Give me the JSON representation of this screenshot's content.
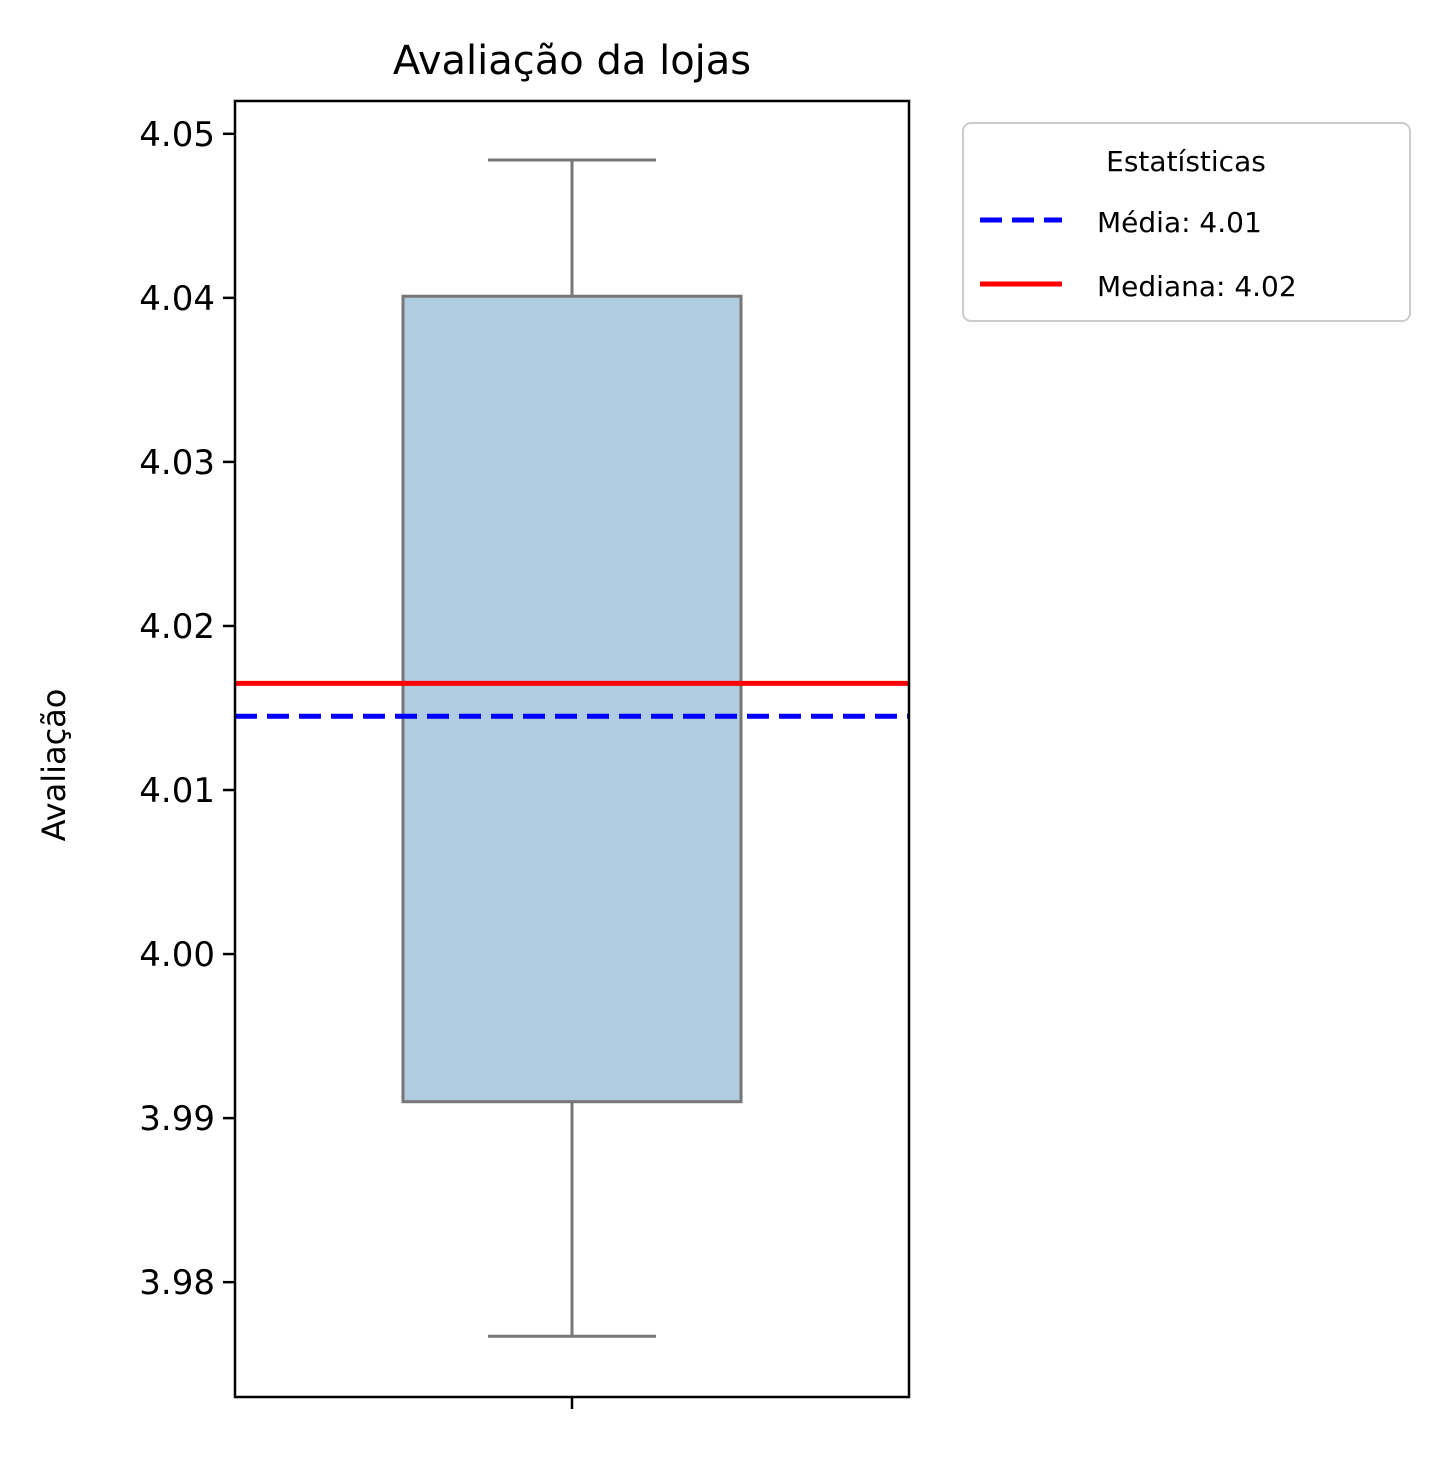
{
  "chart_data": {
    "type": "box",
    "title": "Avaliação da lojas",
    "xlabel": "",
    "ylabel": "Avaliação",
    "ylim": [
      3.973,
      4.052
    ],
    "yticks": [
      3.98,
      3.99,
      4.0,
      4.01,
      4.02,
      4.03,
      4.04,
      4.05
    ],
    "ytick_labels": [
      "3.98",
      "3.99",
      "4.00",
      "4.01",
      "4.02",
      "4.03",
      "4.04",
      "4.05"
    ],
    "grid": false,
    "box": {
      "whisker_low": 3.9767,
      "q1": 3.991,
      "median": 4.0165,
      "q3": 4.0401,
      "whisker_high": 4.0484
    },
    "reference_lines": [
      {
        "label": "Média: 4.01",
        "value": 4.0145,
        "style": "dashed",
        "color": "#0000ff"
      },
      {
        "label": "Mediana: 4.02",
        "value": 4.0165,
        "style": "solid",
        "color": "#ff0000"
      }
    ],
    "legend": {
      "title": "Estatísticas",
      "placement": "outside-top-right"
    },
    "colors": {
      "box_fill": "#b0cce0",
      "box_edge": "#777777",
      "axis": "#000000"
    }
  }
}
